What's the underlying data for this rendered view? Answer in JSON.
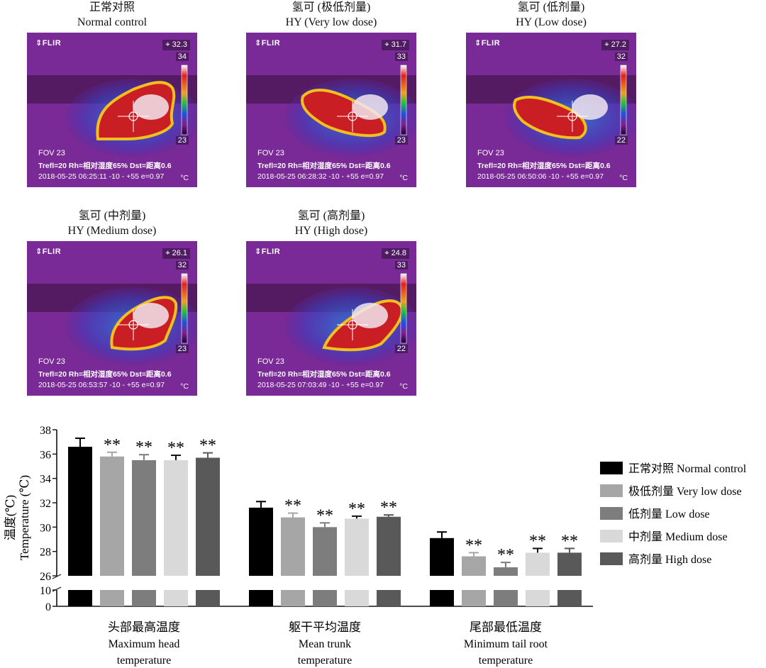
{
  "panels": [
    {
      "title_cn": "正常对照",
      "title_en": "Normal control",
      "flir": "⇕FLIR",
      "spot": "⌖ 32.3",
      "scale_max": "34",
      "scale_min": "23",
      "fov": "FOV 23",
      "params": "Trefl=20 Rh=相对湿度65% Dst=距离0.6",
      "stamp": "2018-05-25 06:25:11   -10 -  +55  e=0.97",
      "unit": "°C"
    },
    {
      "title_cn": "氢可 (极低剂量)",
      "title_en": "HY (Very low dose)",
      "flir": "⇕FLIR",
      "spot": "⌖ 31.7",
      "scale_max": "33",
      "scale_min": "23",
      "fov": "FOV 23",
      "params": "Trefl=20 Rh=相对湿度65% Dst=距离0.6",
      "stamp": "2018-05-25 06:28:32   -10 -  +55  e=0.97",
      "unit": "°C"
    },
    {
      "title_cn": "氢可 (低剂量)",
      "title_en": "HY (Low dose)",
      "flir": "⇕FLIR",
      "spot": "⌖ 27.2",
      "scale_max": "32",
      "scale_min": "22",
      "fov": "FOV 23",
      "params": "Trefl=20 Rh=相对湿度65% Dst=距离0.6",
      "stamp": "2018-05-25 06:50:06   -10 -  +55  e=0.97",
      "unit": "°C"
    },
    {
      "title_cn": "氢可 (中剂量)",
      "title_en": "HY (Medium dose)",
      "flir": "⇕FLIR",
      "spot": "⌖ 26.1",
      "scale_max": "32",
      "scale_min": "23",
      "fov": "FOV 23",
      "params": "Trefl=20 Rh=相对湿度65% Dst=距离0.6",
      "stamp": "2018-05-25 06:53:57   -10 -  +55  e=0.97",
      "unit": "°C"
    },
    {
      "title_cn": "氢可 (高剂量)",
      "title_en": "HY (High dose)",
      "flir": "⇕FLIR",
      "spot": "⌖ 24.8",
      "scale_max": "33",
      "scale_min": "22",
      "fov": "FOV 23",
      "params": "Trefl=20 Rh=相对湿度65% Dst=距离0.6",
      "stamp": "2018-05-25 07:03:49   -10 -  +55  e=0.97",
      "unit": "°C"
    }
  ],
  "chart_data": {
    "type": "bar",
    "ylabel_cn": "温度(℃)",
    "ylabel_en": "Temperature (℃)",
    "ylim_upper": [
      26,
      38
    ],
    "ylim_lower": [
      0,
      10
    ],
    "yticks_upper": [
      "26",
      "28",
      "30",
      "32",
      "34",
      "36",
      "38"
    ],
    "yticks_lower": [
      "0",
      "10"
    ],
    "categories": [
      {
        "cn": "头部最高温度",
        "en1": "Maximum head",
        "en2": "temperature"
      },
      {
        "cn": "躯干平均温度",
        "en1": "Mean trunk",
        "en2": "temperature"
      },
      {
        "cn": "尾部最低温度",
        "en1": "Minimum tail root",
        "en2": "temperature"
      }
    ],
    "series": [
      {
        "name": "正常对照 Normal control",
        "color": "#000000",
        "values": [
          36.6,
          31.6,
          29.1
        ],
        "errors": [
          0.7,
          0.5,
          0.5
        ],
        "sig": [
          "",
          "",
          ""
        ]
      },
      {
        "name": "极低剂量 Very low dose",
        "color": "#a6a6a6",
        "values": [
          35.8,
          30.8,
          27.6
        ],
        "errors": [
          0.35,
          0.35,
          0.3
        ],
        "sig": [
          "**",
          "**",
          "**"
        ]
      },
      {
        "name": "低剂量 Low dose",
        "color": "#7d7d7d",
        "values": [
          35.5,
          30.0,
          26.7
        ],
        "errors": [
          0.45,
          0.35,
          0.4
        ],
        "sig": [
          "**",
          "**",
          "**"
        ]
      },
      {
        "name": "中剂量 Medium dose",
        "color": "#d9d9d9",
        "values": [
          35.5,
          30.7,
          27.9
        ],
        "errors": [
          0.4,
          0.2,
          0.35
        ],
        "sig": [
          "**",
          "**",
          "**"
        ]
      },
      {
        "name": "高剂量 High dose",
        "color": "#595959",
        "values": [
          35.7,
          30.85,
          27.9
        ],
        "errors": [
          0.4,
          0.15,
          0.35
        ],
        "sig": [
          "**",
          "**",
          "**"
        ]
      }
    ]
  }
}
